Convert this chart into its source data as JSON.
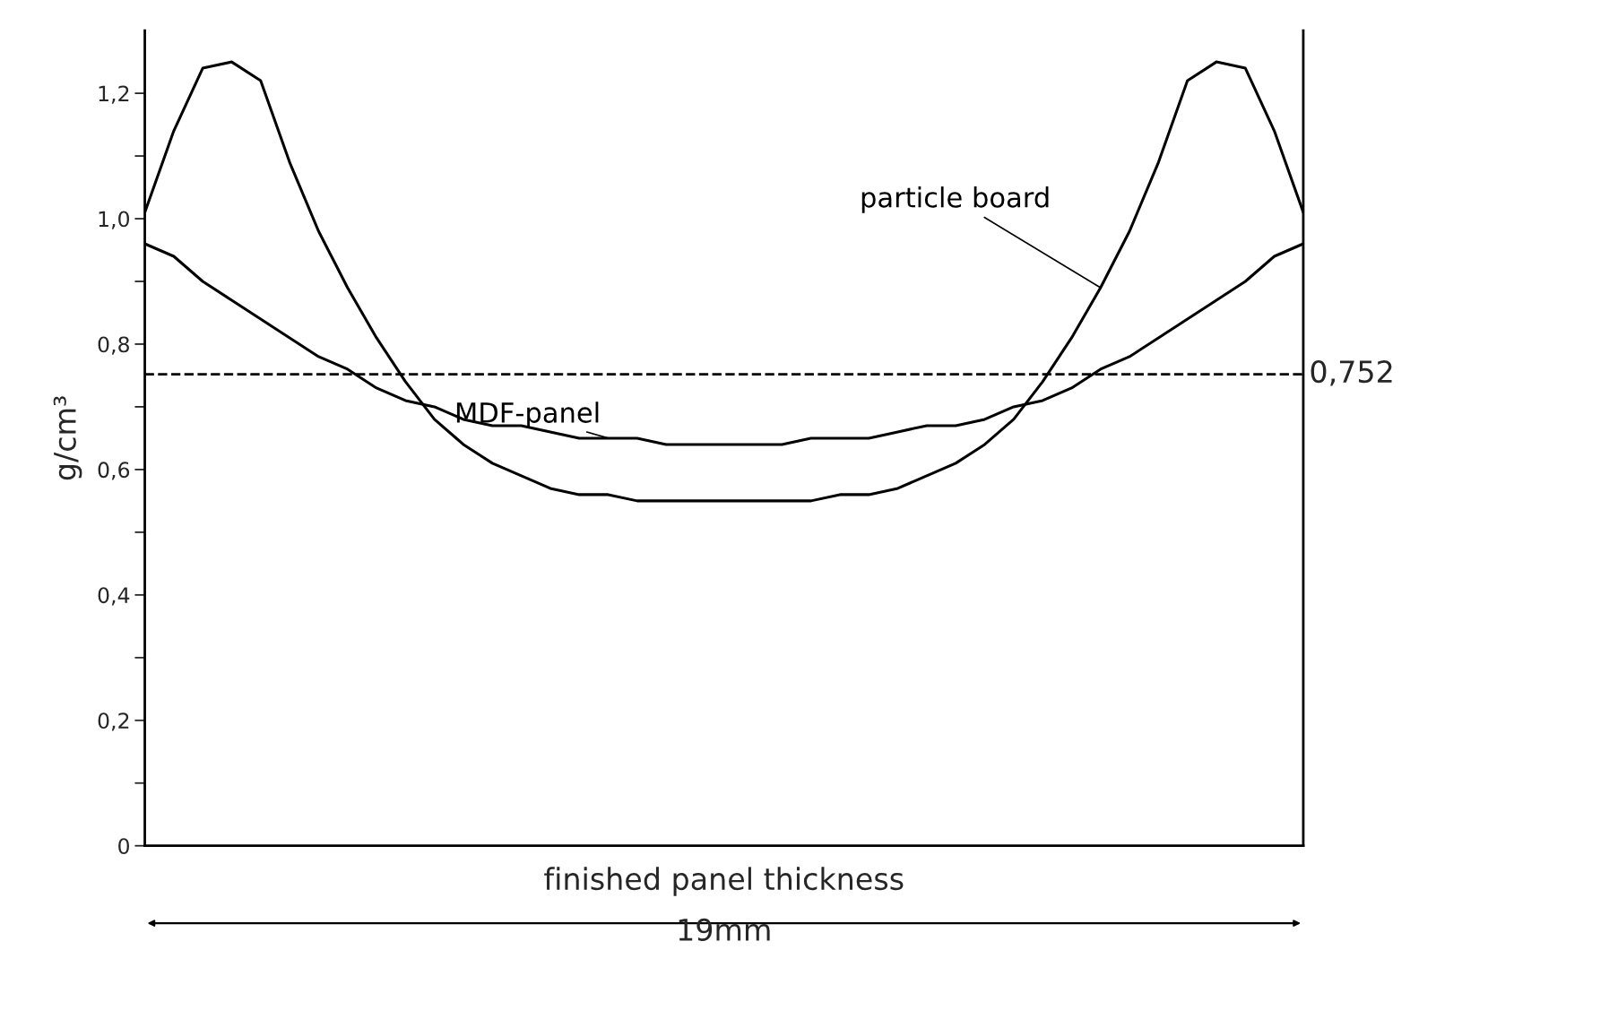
{
  "chart_data": {
    "type": "line",
    "xlabel": "finished panel thickness",
    "ylabel": "g/cm³",
    "categories": [
      null,
      null,
      null,
      null,
      null,
      null,
      null,
      null,
      null,
      null,
      null,
      null,
      null,
      null,
      null,
      null,
      null,
      null,
      null,
      null,
      null,
      null,
      null,
      null,
      null,
      null,
      null,
      null,
      null,
      null,
      null,
      null,
      null,
      null,
      null,
      null,
      null,
      null,
      null,
      null,
      null
    ],
    "series": [
      {
        "name": "particle board",
        "color": "#000000",
        "values": [
          1.01,
          1.14,
          1.24,
          1.25,
          1.22,
          1.09,
          0.98,
          0.89,
          0.81,
          0.74,
          0.68,
          0.64,
          0.61,
          0.59,
          0.57,
          0.56,
          0.56,
          0.55,
          0.55,
          0.55,
          0.55,
          0.55,
          0.55,
          0.55,
          0.56,
          0.56,
          0.57,
          0.59,
          0.61,
          0.64,
          0.68,
          0.74,
          0.81,
          0.89,
          0.98,
          1.09,
          1.22,
          1.25,
          1.24,
          1.14,
          1.01
        ]
      },
      {
        "name": "MDF-panel",
        "color": "#000000",
        "values": [
          0.96,
          0.94,
          0.9,
          0.87,
          0.84,
          0.81,
          0.78,
          0.76,
          0.73,
          0.71,
          0.7,
          0.68,
          0.67,
          0.67,
          0.66,
          0.65,
          0.65,
          0.65,
          0.64,
          0.64,
          0.64,
          0.64,
          0.64,
          0.65,
          0.65,
          0.65,
          0.66,
          0.67,
          0.67,
          0.68,
          0.7,
          0.71,
          0.73,
          0.76,
          0.78,
          0.81,
          0.84,
          0.87,
          0.9,
          0.94,
          0.96
        ]
      }
    ],
    "ylim": [
      0,
      1.3
    ],
    "yticks": [
      {
        "value": 0,
        "label": "0"
      },
      {
        "value": 0.1,
        "label": null
      },
      {
        "value": 0.2,
        "label": "0,2"
      },
      {
        "value": 0.3,
        "label": null
      },
      {
        "value": 0.4,
        "label": "0,4"
      },
      {
        "value": 0.5,
        "label": null
      },
      {
        "value": 0.6,
        "label": "0,6"
      },
      {
        "value": 0.7,
        "label": null
      },
      {
        "value": 0.8,
        "label": "0,8"
      },
      {
        "value": 0.9,
        "label": null
      },
      {
        "value": 1.0,
        "label": "1,0"
      },
      {
        "value": 1.1,
        "label": null
      },
      {
        "value": 1.2,
        "label": "1,2"
      }
    ],
    "ref_lines": [
      {
        "axis": "y",
        "value": 0.752,
        "label": "0,752",
        "line_style": "dashed",
        "color": "#000000"
      }
    ],
    "annotations": [
      "19mm"
    ],
    "tick_labels": "y",
    "grid": false,
    "legend": false,
    "marker": "none",
    "line_style": "solid"
  }
}
